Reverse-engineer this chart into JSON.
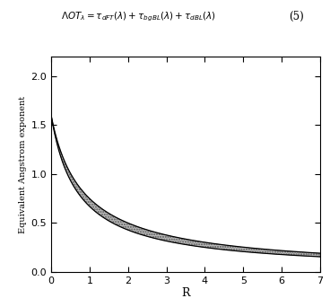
{
  "equation_number": "(5)",
  "xlabel": "R",
  "ylabel": "Equivalent Angstrom exponent",
  "xlim": [
    0,
    7
  ],
  "ylim": [
    0,
    2.2
  ],
  "xticks": [
    0,
    1,
    2,
    3,
    4,
    5,
    6,
    7
  ],
  "yticks": [
    0,
    0.5,
    1,
    1.5,
    2
  ],
  "alpha_bg_upper": 1.6,
  "alpha_bg_lower": 1.6,
  "alpha_dust": 0.0,
  "background_color": "#ffffff",
  "fill_color": "#aaaaaa",
  "line_color": "#000000",
  "R_start": 0.01,
  "R_end": 7.0,
  "n_points": 1000,
  "upper_scale": 2.2,
  "lower_scale": 1.1,
  "upper_power": 1.0,
  "lower_power": 1.15
}
